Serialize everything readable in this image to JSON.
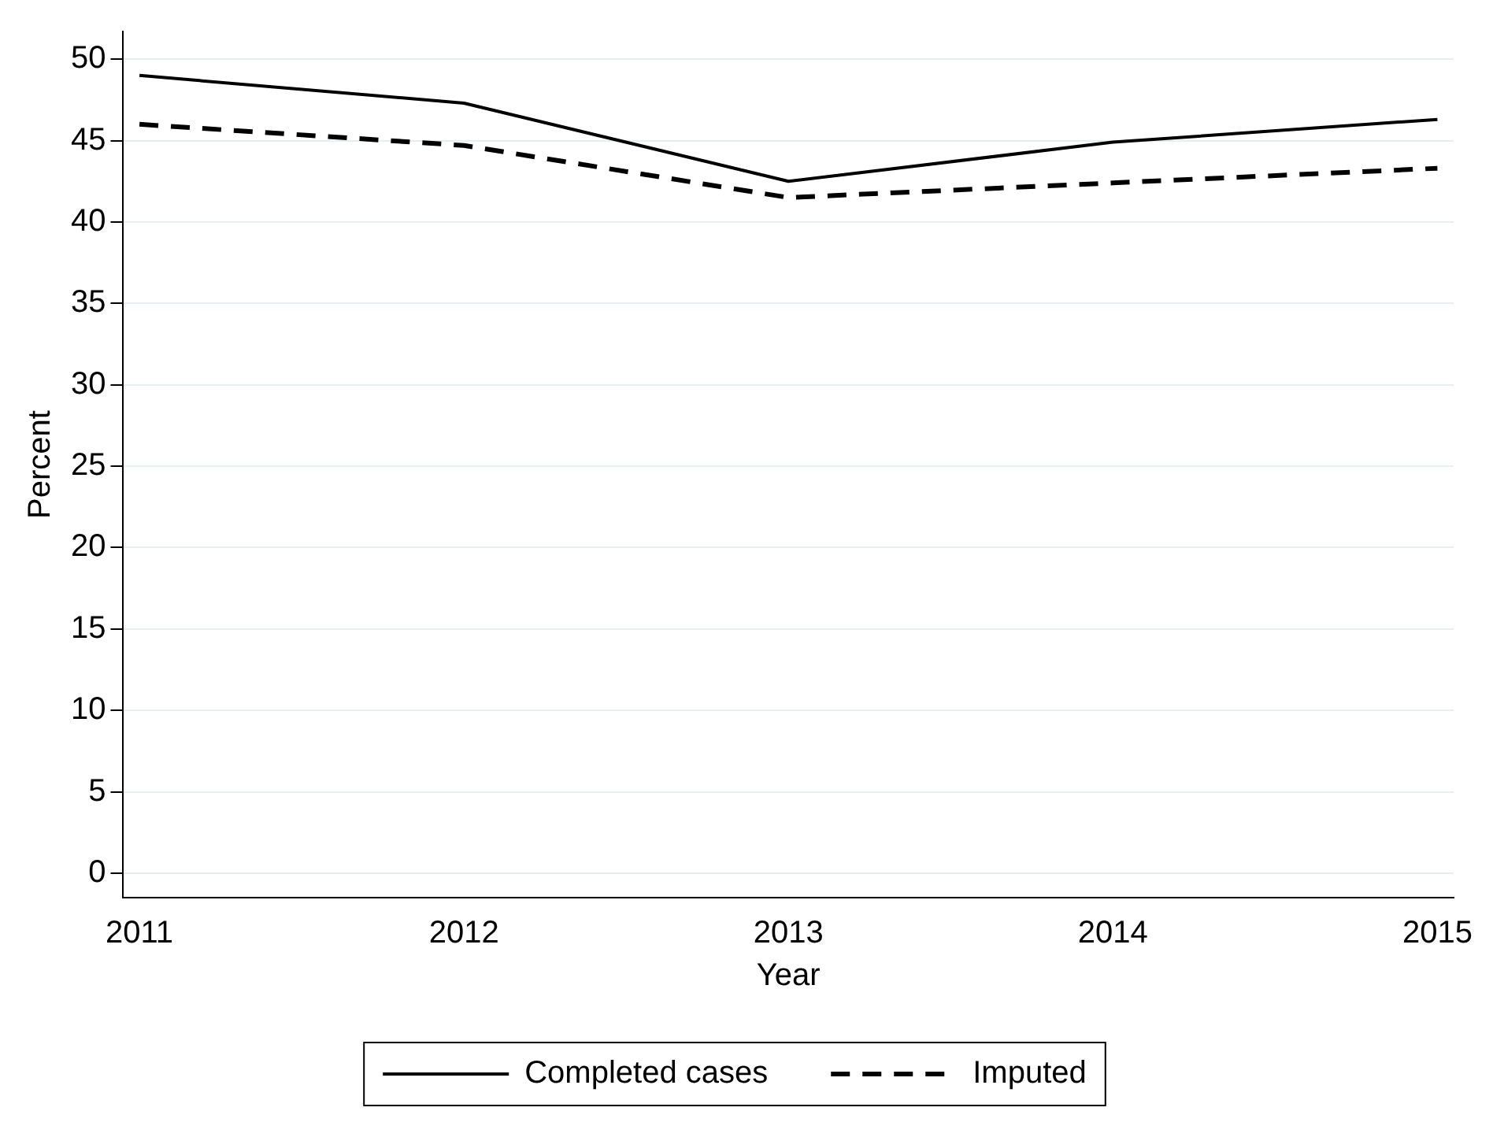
{
  "chart_data": {
    "type": "line",
    "xlabel": "Year",
    "ylabel": "Percent",
    "x": [
      2011,
      2012,
      2013,
      2014,
      2015
    ],
    "series": [
      {
        "name": "Completed cases",
        "color": "#000000",
        "line_style": "solid",
        "values": [
          49.0,
          47.3,
          42.5,
          44.9,
          46.3
        ]
      },
      {
        "name": "Imputed",
        "color": "#000000",
        "line_style": "dashed",
        "values": [
          46.0,
          44.7,
          41.5,
          42.4,
          43.3
        ]
      }
    ],
    "xlim": [
      2010.95,
      2015.05
    ],
    "xticks": [
      2011,
      2012,
      2013,
      2014,
      2015
    ],
    "ylim": [
      -1.5,
      51.7
    ],
    "yticks": [
      0,
      5,
      10,
      15,
      20,
      25,
      30,
      35,
      40,
      45,
      50
    ],
    "grid": "y",
    "legend": "bottom",
    "marker": "none"
  }
}
